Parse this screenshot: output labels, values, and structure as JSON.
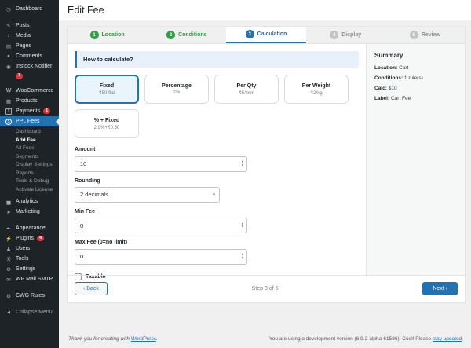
{
  "colors": {
    "accent": "#2271b1",
    "success_green": "#2f9e44",
    "badge_red": "#d63638",
    "sidebar_bg": "#1d2327",
    "page_bg": "#f0f0f1",
    "selected_card_bg": "#eaf4fd",
    "banner_bg": "#e7f1fb"
  },
  "icons": {
    "dashboard": "◷",
    "posts": "✎",
    "media": "♪",
    "pages": "▤",
    "comments": "●",
    "instock_notifier": "◉",
    "woocommerce": "W",
    "products": "▦",
    "payments": "$",
    "ppl_fees": "$",
    "analytics": "▅",
    "marketing": "➤",
    "appearance": "✒",
    "plugins": "⚡",
    "users": "♟",
    "tools": "⚒",
    "settings": "⚙",
    "wp_mail_smtp": "✉",
    "cwg_rules": "⚙",
    "collapse_menu": "◀",
    "select_chevron": "▾",
    "spinner_up": "▴",
    "spinner_down": "▾"
  },
  "sidebar": {
    "items": [
      {
        "label": "Dashboard"
      },
      {
        "label": "Posts"
      },
      {
        "label": "Media"
      },
      {
        "label": "Pages"
      },
      {
        "label": "Comments"
      },
      {
        "label": "Instock Notifier",
        "badge": "7"
      },
      {
        "label": "WooCommerce"
      },
      {
        "label": "Products"
      },
      {
        "label": "Payments",
        "badge": "1"
      },
      {
        "label": "PPL Fees"
      },
      {
        "label": "Analytics"
      },
      {
        "label": "Marketing"
      },
      {
        "label": "Appearance"
      },
      {
        "label": "Plugins",
        "badge": "4"
      },
      {
        "label": "Users"
      },
      {
        "label": "Tools"
      },
      {
        "label": "Settings"
      },
      {
        "label": "WP Mail SMTP"
      },
      {
        "label": "CWG Rules"
      },
      {
        "label": "Collapse Menu"
      }
    ],
    "submenu": [
      {
        "label": "Dashboard"
      },
      {
        "label": "Add Fee"
      },
      {
        "label": "All Fees"
      },
      {
        "label": "Segments"
      },
      {
        "label": "Display Settings"
      },
      {
        "label": "Reports"
      },
      {
        "label": "Tools & Debug"
      },
      {
        "label": "Activate License"
      }
    ]
  },
  "header": {
    "title": "Edit Fee"
  },
  "steps": [
    {
      "num": "1",
      "label": "Location",
      "state": "done"
    },
    {
      "num": "2",
      "label": "Conditions",
      "state": "done"
    },
    {
      "num": "3",
      "label": "Calculation",
      "state": "active"
    },
    {
      "num": "4",
      "label": "Display",
      "state": "todo"
    },
    {
      "num": "5",
      "label": "Review",
      "state": "todo"
    }
  ],
  "form": {
    "question": "How to calculate?",
    "methods": [
      {
        "title": "Fixed",
        "subtitle": "₹50 flat",
        "selected": true
      },
      {
        "title": "Percentage",
        "subtitle": "2%",
        "selected": false
      },
      {
        "title": "Per Qty",
        "subtitle": "₹5/item",
        "selected": false
      },
      {
        "title": "Per Weight",
        "subtitle": "₹2/kg",
        "selected": false
      },
      {
        "title": "% + Fixed",
        "subtitle": "2.9%+₹0.50",
        "selected": false
      }
    ],
    "amount_label": "Amount",
    "amount_value": "10",
    "rounding_label": "Rounding",
    "rounding_value": "2 decimals",
    "min_label": "Min Fee",
    "min_value": "0",
    "max_label": "Max Fee (0=no limit)",
    "max_value": "0",
    "taxable_label": "Taxable",
    "taxable_checked": false
  },
  "summary": {
    "title": "Summary",
    "rows": [
      {
        "k": "Location:",
        "v": "Cart"
      },
      {
        "k": "Conditions:",
        "v": "1 rule(s)"
      },
      {
        "k": "Calc:",
        "v": "$10"
      },
      {
        "k": "Label:",
        "v": "Cart Fee"
      }
    ]
  },
  "wizard_footer": {
    "back_label": "‹ Back",
    "step_text": "Step 3 of 5",
    "next_label": "Next ›"
  },
  "admin_footer": {
    "left_prefix": "Thank you for creating with ",
    "left_link": "WordPress",
    "left_suffix": ".",
    "right_prefix": "You are using a development version (6.9.2-alpha-61586). Cool! Please ",
    "right_link": "stay updated",
    "right_suffix": "."
  }
}
